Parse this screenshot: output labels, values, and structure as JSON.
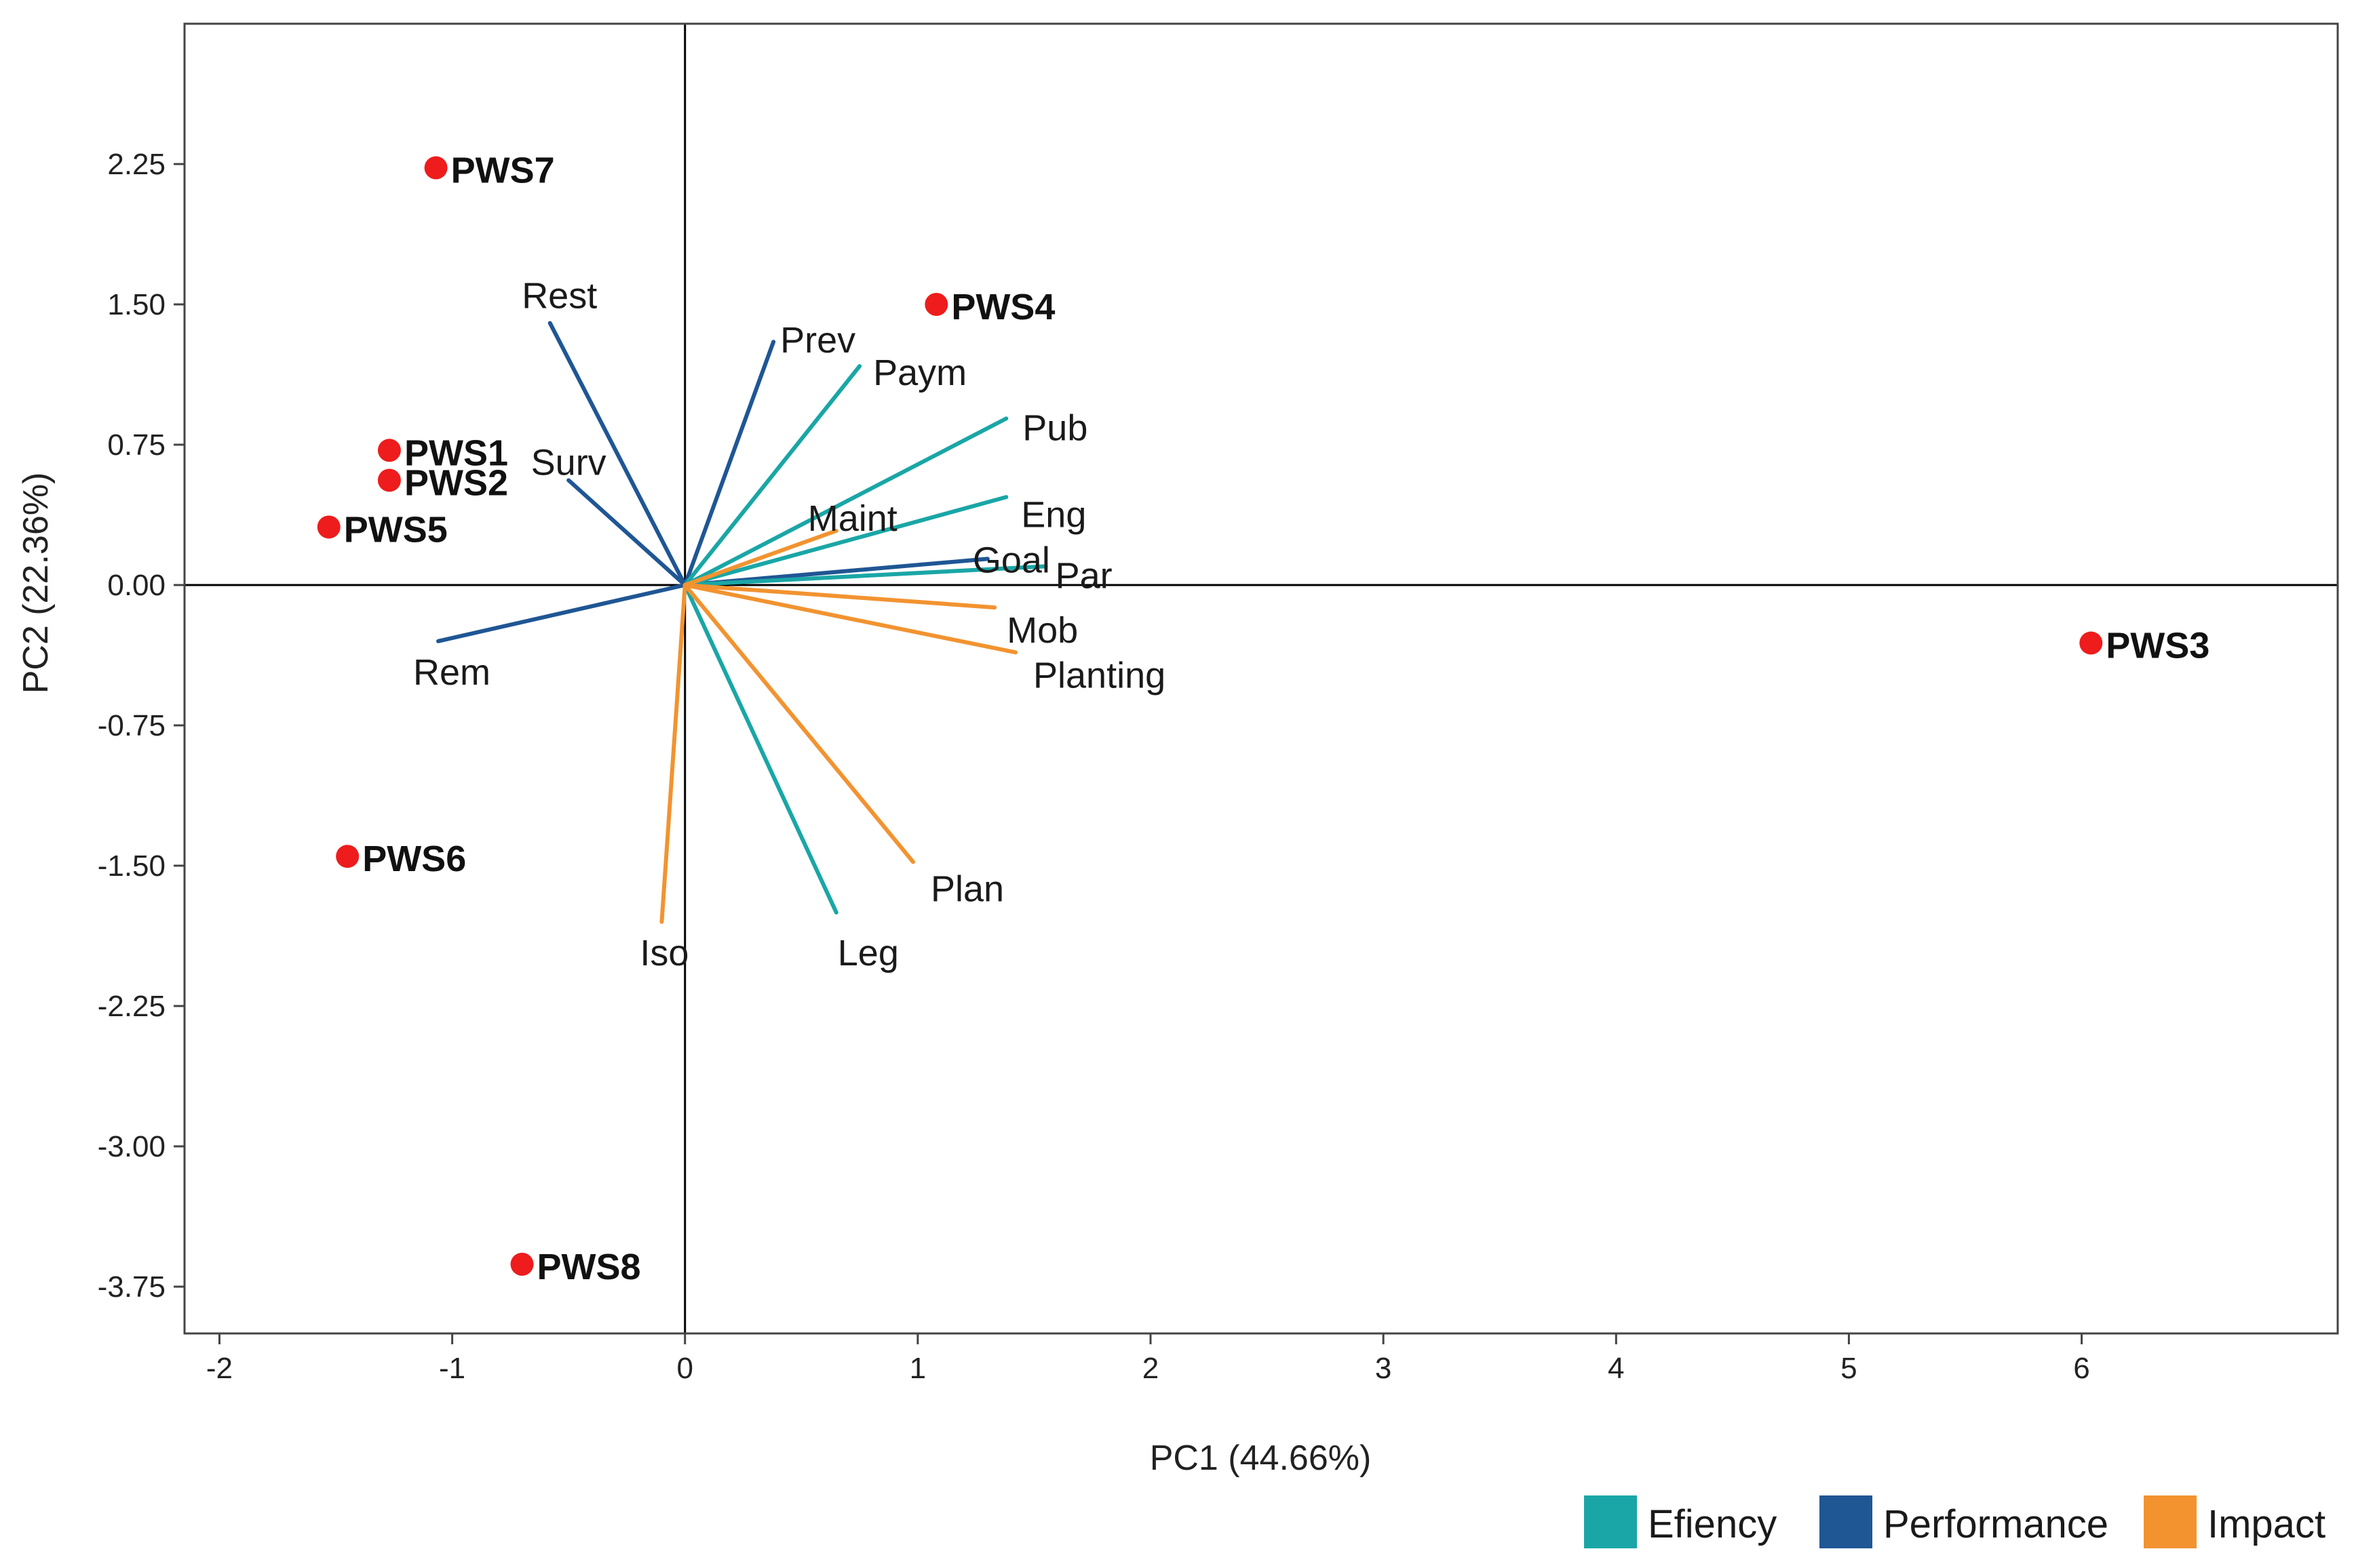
{
  "chart_data": {
    "type": "scatter",
    "subtype": "pca-biplot",
    "title": "",
    "xlabel": "PC1 (44.66%)",
    "ylabel": "PC2 (22.36%)",
    "xlim": [
      -2.15,
      7.1
    ],
    "ylim": [
      -4.0,
      3.0
    ],
    "x_ticks": [
      -2,
      -1,
      0,
      1,
      2,
      3,
      4,
      5,
      6
    ],
    "x_tick_labels": [
      "-2",
      "-1",
      "0",
      "1",
      "2",
      "3",
      "4",
      "5",
      "6"
    ],
    "y_ticks": [
      2.25,
      1.5,
      0.75,
      0.0,
      -0.75,
      -1.5,
      -2.25,
      -3.0,
      -3.75
    ],
    "y_tick_labels": [
      "2.25",
      "1.50",
      "0.75",
      "0.00",
      "-0.75",
      "-1.50",
      "-2.25",
      "-3.00",
      "-3.75"
    ],
    "grid": false,
    "reference_lines": {
      "x": 0,
      "y": 0
    },
    "groups": [
      {
        "name": "Efiency",
        "color": "#1aa6a6"
      },
      {
        "name": "Performance",
        "color": "#1f5694"
      },
      {
        "name": "Impact",
        "color": "#f29330"
      }
    ],
    "point_color": "#ee1c1c",
    "points": [
      {
        "name": "PWS1",
        "x": -1.27,
        "y": 0.72
      },
      {
        "name": "PWS2",
        "x": -1.27,
        "y": 0.56
      },
      {
        "name": "PWS3",
        "x": 6.04,
        "y": -0.31
      },
      {
        "name": "PWS4",
        "x": 1.08,
        "y": 1.5
      },
      {
        "name": "PWS5",
        "x": -1.53,
        "y": 0.31
      },
      {
        "name": "PWS6",
        "x": -1.45,
        "y": -1.45
      },
      {
        "name": "PWS7",
        "x": -1.07,
        "y": 2.23
      },
      {
        "name": "PWS8",
        "x": -0.7,
        "y": -3.63
      }
    ],
    "loadings": [
      {
        "name": "Rest",
        "group": "Performance",
        "x": -0.58,
        "y": 1.4
      },
      {
        "name": "Surv",
        "group": "Performance",
        "x": -0.5,
        "y": 0.56
      },
      {
        "name": "Rem",
        "group": "Performance",
        "x": -1.06,
        "y": -0.3
      },
      {
        "name": "Prev",
        "group": "Performance",
        "x": 0.38,
        "y": 1.3
      },
      {
        "name": "Goal",
        "group": "Performance",
        "x": 1.3,
        "y": 0.14
      },
      {
        "name": "Paym",
        "group": "Efiency",
        "x": 0.75,
        "y": 1.17
      },
      {
        "name": "Pub",
        "group": "Efiency",
        "x": 1.38,
        "y": 0.89
      },
      {
        "name": "Eng",
        "group": "Efiency",
        "x": 1.38,
        "y": 0.47
      },
      {
        "name": "Par",
        "group": "Efiency",
        "x": 1.55,
        "y": 0.1
      },
      {
        "name": "Leg",
        "group": "Efiency",
        "x": 0.65,
        "y": -1.75
      },
      {
        "name": "Maint",
        "group": "Impact",
        "x": 0.65,
        "y": 0.29
      },
      {
        "name": "Mob",
        "group": "Impact",
        "x": 1.33,
        "y": -0.12
      },
      {
        "name": "Planting",
        "group": "Impact",
        "x": 1.42,
        "y": -0.36
      },
      {
        "name": "Plan",
        "group": "Impact",
        "x": 0.98,
        "y": -1.48
      },
      {
        "name": "Iso",
        "group": "Impact",
        "x": -0.1,
        "y": -1.8
      }
    ]
  }
}
